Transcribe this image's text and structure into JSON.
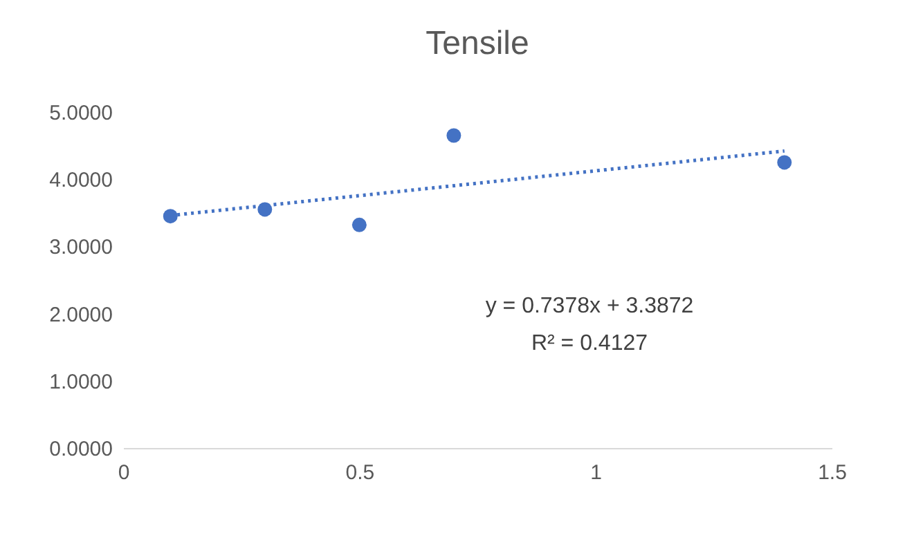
{
  "chart_data": {
    "type": "scatter",
    "title": "Tensile",
    "x": [
      0.1,
      0.3,
      0.5,
      0.7,
      1.4
    ],
    "series": [
      {
        "type": "scatter",
        "color": "#4472c4",
        "values": [
          3.45,
          3.55,
          3.32,
          4.65,
          4.25
        ],
        "marker": "circle"
      },
      {
        "type": "line",
        "color": "#4472c4",
        "x": [
          0.1,
          1.4
        ],
        "values": [
          3.46,
          4.42
        ],
        "line_style": "dotted",
        "marker": "none"
      }
    ],
    "xlim": [
      0,
      1.5
    ],
    "xticks": [
      0,
      0.5,
      1,
      1.5
    ],
    "ylim": [
      0,
      5
    ],
    "yticks": [
      {
        "value": 0,
        "label": "0.0000"
      },
      {
        "value": 1,
        "label": "1.0000"
      },
      {
        "value": 2,
        "label": "2.0000"
      },
      {
        "value": 3,
        "label": "3.0000"
      },
      {
        "value": 4,
        "label": "4.0000"
      },
      {
        "value": 5,
        "label": "5.0000"
      }
    ],
    "annotations": [
      "y = 0.7378x + 3.3872",
      "R² = 0.4127"
    ],
    "grid": false
  }
}
